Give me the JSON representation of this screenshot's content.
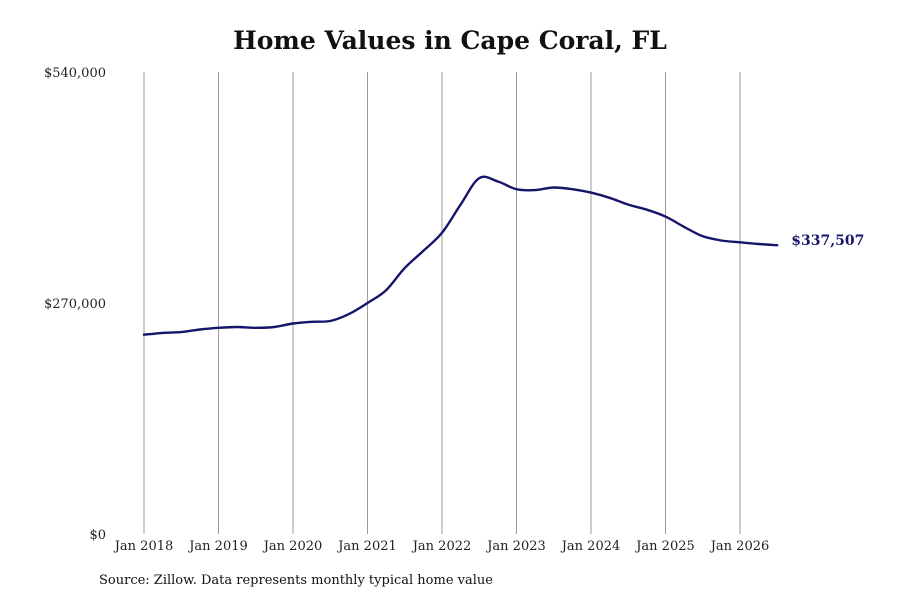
{
  "chart_data": {
    "type": "line",
    "title": "Home Values in Cape Coral, FL",
    "xlabel": "",
    "ylabel": "",
    "ylim": [
      0,
      540000
    ],
    "y_ticks": [
      "$0",
      "$270,000",
      "$540,000"
    ],
    "y_tick_values": [
      0,
      270000,
      540000
    ],
    "x_ticks": [
      "Jan 2018",
      "Jan 2019",
      "Jan 2020",
      "Jan 2021",
      "Jan 2022",
      "Jan 2023",
      "Jan 2024",
      "Jan 2025",
      "Jan 2026"
    ],
    "x_tick_values": [
      "2018-01",
      "2019-01",
      "2020-01",
      "2021-01",
      "2022-01",
      "2023-01",
      "2024-01",
      "2025-01",
      "2026-01"
    ],
    "xlim": [
      "2018-01",
      "2026-07"
    ],
    "grid": "vertical",
    "series": [
      {
        "color": "#15156b",
        "x": [
          "2018-01",
          "2018-04",
          "2018-07",
          "2018-10",
          "2019-01",
          "2019-04",
          "2019-07",
          "2019-10",
          "2020-01",
          "2020-04",
          "2020-07",
          "2020-10",
          "2021-01",
          "2021-04",
          "2021-07",
          "2021-10",
          "2022-01",
          "2022-04",
          "2022-07",
          "2022-10",
          "2023-01",
          "2023-04",
          "2023-07",
          "2023-10",
          "2024-01",
          "2024-04",
          "2024-07",
          "2024-10",
          "2025-01",
          "2025-04",
          "2025-07",
          "2025-10",
          "2026-01",
          "2026-04",
          "2026-07"
        ],
        "values": [
          233000,
          235000,
          236000,
          239000,
          241000,
          242000,
          241000,
          242000,
          246000,
          248000,
          249000,
          257000,
          270000,
          285000,
          311000,
          331000,
          352000,
          385000,
          416000,
          412000,
          403000,
          402000,
          405000,
          403000,
          399000,
          393000,
          385000,
          379000,
          371000,
          359000,
          348000,
          343000,
          341000,
          339000,
          337507
        ]
      }
    ],
    "end_label": "$337,507",
    "source": "Source: Zillow. Data represents monthly typical home value"
  }
}
